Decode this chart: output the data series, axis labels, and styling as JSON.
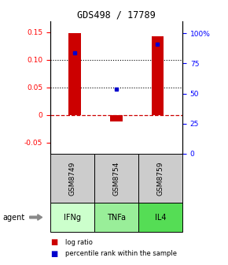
{
  "title": "GDS498 / 17789",
  "samples": [
    "GSM8749",
    "GSM8754",
    "GSM8759"
  ],
  "agents": [
    "IFNg",
    "TNFa",
    "IL4"
  ],
  "agent_colors": [
    "#ccffcc",
    "#99ee99",
    "#55dd55"
  ],
  "log_ratios": [
    0.148,
    -0.012,
    0.143
  ],
  "percentile_ranks": [
    0.113,
    0.047,
    0.128
  ],
  "bar_color": "#cc0000",
  "dot_color": "#0000cc",
  "ylim_left": [
    -0.07,
    0.17
  ],
  "ylim_right": [
    0,
    110
  ],
  "yticks_left": [
    -0.05,
    0.0,
    0.05,
    0.1,
    0.15
  ],
  "ytick_labels_left": [
    "-0.05",
    "0",
    "0.05",
    "0.10",
    "0.15"
  ],
  "yticks_right": [
    0,
    25,
    50,
    75,
    100
  ],
  "ytick_labels_right": [
    "0",
    "25",
    "50",
    "75",
    "100%"
  ],
  "dotted_lines": [
    0.05,
    0.1
  ],
  "sample_box_color": "#cccccc",
  "legend_log_ratio_color": "#cc0000",
  "legend_percentile_color": "#0000cc",
  "bar_width": 0.3
}
